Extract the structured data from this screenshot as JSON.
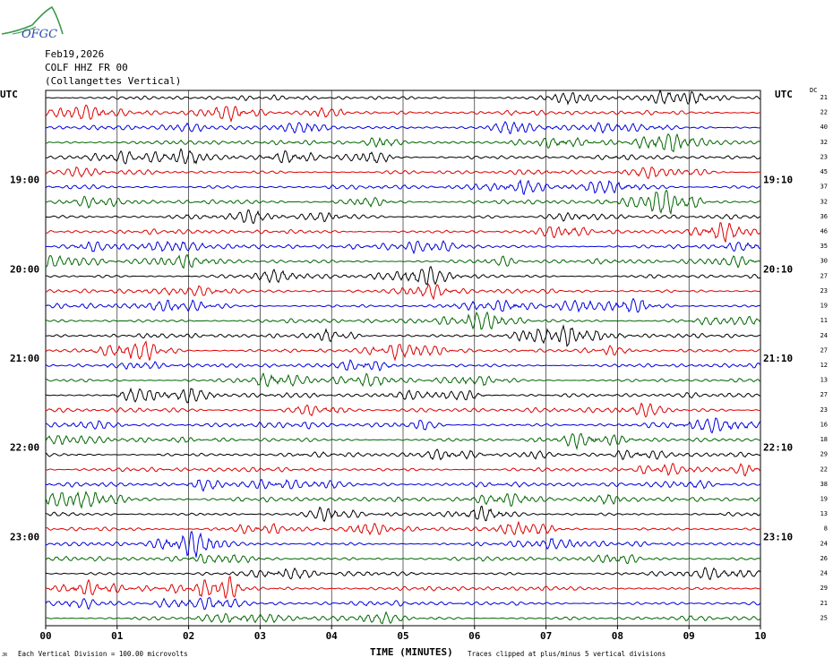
{
  "header": {
    "logo_text": "OFGC",
    "date": "Feb19,2026",
    "station": "COLF HHZ FR 00",
    "location": "(Collangettes Vertical)"
  },
  "left_label": "UTC",
  "right_label": "UTC",
  "dc_label": "DC",
  "hour_labels_left": [
    "19:00",
    "20:00",
    "21:00",
    "22:00",
    "23:00"
  ],
  "hour_labels_right": [
    "19:10",
    "20:10",
    "21:10",
    "22:10",
    "23:10"
  ],
  "dc_values": [
    "21",
    "22",
    "40",
    "32",
    "23",
    "45",
    "37",
    "32",
    "36",
    "46",
    "35",
    "30",
    "27",
    "23",
    "19",
    "11",
    "24",
    "27",
    "12",
    "13",
    "27",
    "23",
    "16",
    "18",
    "29",
    "22",
    "38",
    "19",
    "13",
    "8",
    "24",
    "26",
    "24",
    "29",
    "21",
    "25"
  ],
  "x_axis": {
    "ticks": [
      "00",
      "01",
      "02",
      "03",
      "04",
      "05",
      "06",
      "07",
      "08",
      "09",
      "10"
    ],
    "title": "TIME (MINUTES)"
  },
  "footer": {
    "corner_mark": "JR",
    "scale_note": "Each Vertical Division = 100.00 microvolts",
    "clip_note": "Traces clipped at plus/minus 5 vertical divisions"
  },
  "chart_data": {
    "type": "line",
    "xlabel": "TIME (MINUTES)",
    "xlim": [
      0,
      10
    ],
    "trace_count": 36,
    "minutes_per_trace": 10,
    "trace_colors": [
      "#000000",
      "#dd0000",
      "#0000dd",
      "#006600"
    ]
  }
}
